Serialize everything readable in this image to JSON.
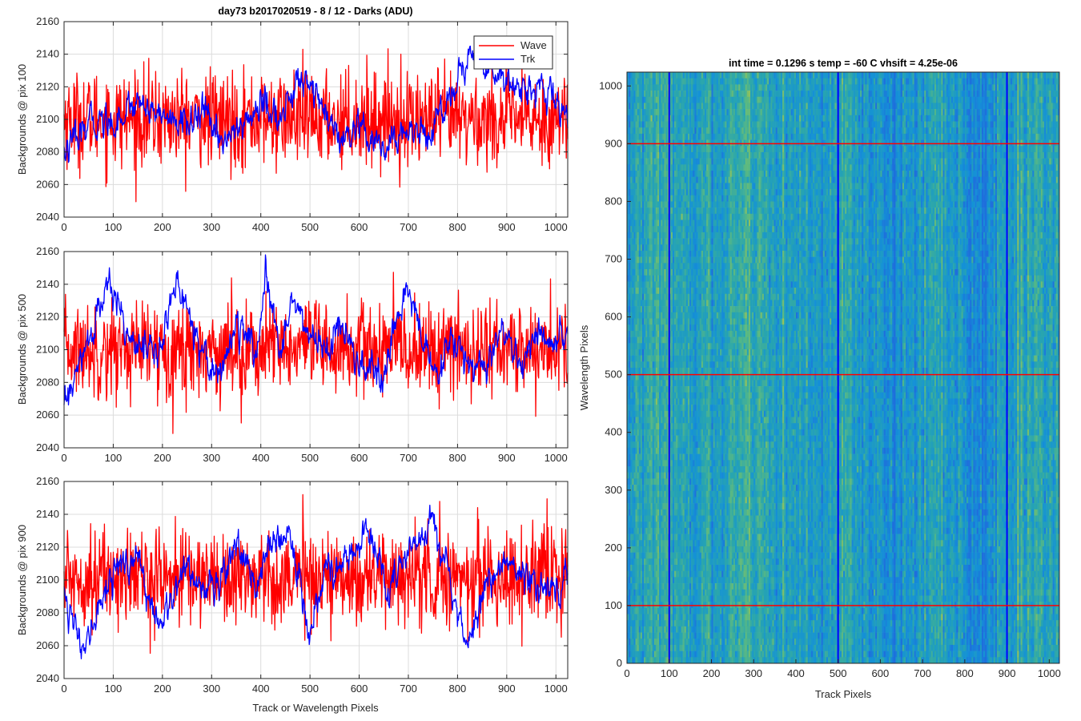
{
  "figure": {
    "left_title": "day73 b2017020519 - 8 / 12 - Darks (ADU)",
    "right_title": "int time = 0.1296 s   temp = -60 C   vhsift = 4.25e-06"
  },
  "chart_data": [
    {
      "type": "line",
      "panel": "top-left",
      "title": "day73 b2017020519 - 8 / 12 - Darks (ADU)",
      "xlabel": "",
      "ylabel": "Backgrounds @ pix 100",
      "xlim": [
        0,
        1024
      ],
      "ylim": [
        2040,
        2160
      ],
      "xticks": [
        0,
        100,
        200,
        300,
        400,
        500,
        600,
        700,
        800,
        900,
        1000
      ],
      "yticks": [
        2040,
        2060,
        2080,
        2100,
        2120,
        2140,
        2160
      ],
      "grid": true,
      "legend": "top-right",
      "series": [
        {
          "name": "Wave",
          "color": "#ff0000",
          "mean": 2100,
          "noise": 17,
          "n": 1024,
          "anchors_x": [
            0,
            1024
          ],
          "anchors_y": [
            2100,
            2100
          ]
        },
        {
          "name": "Trk",
          "color": "#0000ff",
          "mean": 2100,
          "noise": 5,
          "n": 1024,
          "anchors_x": [
            0,
            30,
            60,
            100,
            150,
            190,
            230,
            280,
            320,
            360,
            400,
            440,
            490,
            520,
            560,
            600,
            650,
            700,
            740,
            780,
            820,
            860,
            900,
            950,
            1000,
            1024
          ],
          "anchors_y": [
            2080,
            2088,
            2100,
            2098,
            2112,
            2105,
            2096,
            2104,
            2088,
            2094,
            2110,
            2100,
            2130,
            2110,
            2085,
            2092,
            2080,
            2095,
            2090,
            2112,
            2138,
            2132,
            2125,
            2118,
            2112,
            2100
          ]
        }
      ]
    },
    {
      "type": "line",
      "panel": "middle-left",
      "xlabel": "",
      "ylabel": "Backgrounds @ pix 500",
      "xlim": [
        0,
        1024
      ],
      "ylim": [
        2040,
        2160
      ],
      "xticks": [
        0,
        100,
        200,
        300,
        400,
        500,
        600,
        700,
        800,
        900,
        1000
      ],
      "yticks": [
        2040,
        2060,
        2080,
        2100,
        2120,
        2140,
        2160
      ],
      "grid": true,
      "series": [
        {
          "name": "Wave",
          "color": "#ff0000",
          "mean": 2100,
          "noise": 17,
          "n": 1024,
          "anchors_x": [
            0,
            1024
          ],
          "anchors_y": [
            2100,
            2100
          ]
        },
        {
          "name": "Trk",
          "color": "#0000ff",
          "mean": 2100,
          "noise": 5,
          "n": 1024,
          "anchors_x": [
            0,
            20,
            50,
            90,
            130,
            190,
            230,
            270,
            310,
            350,
            390,
            410,
            440,
            460,
            500,
            540,
            560,
            600,
            650,
            680,
            700,
            730,
            760,
            790,
            830,
            860,
            890,
            930,
            960,
            1000,
            1024
          ],
          "anchors_y": [
            2065,
            2080,
            2105,
            2140,
            2112,
            2095,
            2142,
            2110,
            2082,
            2115,
            2098,
            2140,
            2100,
            2132,
            2108,
            2100,
            2115,
            2090,
            2080,
            2120,
            2140,
            2105,
            2080,
            2108,
            2088,
            2090,
            2110,
            2090,
            2110,
            2100,
            2110
          ]
        }
      ]
    },
    {
      "type": "line",
      "panel": "bottom-left",
      "xlabel": "Track or Wavelength Pixels",
      "ylabel": "Backgrounds @ pix 900",
      "xlim": [
        0,
        1024
      ],
      "ylim": [
        2040,
        2160
      ],
      "xticks": [
        0,
        100,
        200,
        300,
        400,
        500,
        600,
        700,
        800,
        900,
        1000
      ],
      "yticks": [
        2040,
        2060,
        2080,
        2100,
        2120,
        2140,
        2160
      ],
      "grid": true,
      "series": [
        {
          "name": "Wave",
          "color": "#ff0000",
          "mean": 2102,
          "noise": 17,
          "n": 1024,
          "anchors_x": [
            0,
            1024
          ],
          "anchors_y": [
            2102,
            2102
          ]
        },
        {
          "name": "Trk",
          "color": "#0000ff",
          "mean": 2100,
          "noise": 5,
          "n": 1024,
          "anchors_x": [
            0,
            20,
            40,
            70,
            110,
            150,
            200,
            240,
            280,
            310,
            350,
            390,
            420,
            460,
            500,
            530,
            560,
            620,
            660,
            700,
            750,
            780,
            820,
            860,
            900,
            950,
            1000,
            1024
          ],
          "anchors_y": [
            2098,
            2072,
            2052,
            2085,
            2110,
            2110,
            2068,
            2110,
            2098,
            2095,
            2125,
            2096,
            2120,
            2128,
            2068,
            2108,
            2106,
            2130,
            2092,
            2115,
            2140,
            2108,
            2058,
            2100,
            2112,
            2098,
            2095,
            2110
          ]
        }
      ]
    },
    {
      "type": "heatmap",
      "panel": "right",
      "title": "int time = 0.1296 s   temp = -60 C   vhsift = 4.25e-06",
      "xlabel": "Track Pixels",
      "ylabel": "Wavelength Pixels",
      "xlim": [
        0,
        1024
      ],
      "ylim": [
        0,
        1024
      ],
      "xticks": [
        0,
        100,
        200,
        300,
        400,
        500,
        600,
        700,
        800,
        900,
        1000
      ],
      "yticks": [
        0,
        100,
        200,
        300,
        400,
        500,
        600,
        700,
        800,
        900,
        1000
      ],
      "colormap": "parula",
      "vertical_markers": {
        "x": [
          100,
          500,
          900
        ],
        "color": "#0000ff"
      },
      "horizontal_markers": {
        "y": [
          100,
          500,
          900
        ],
        "color": "#ff0000"
      },
      "cols": 256,
      "rows": 96
    }
  ]
}
